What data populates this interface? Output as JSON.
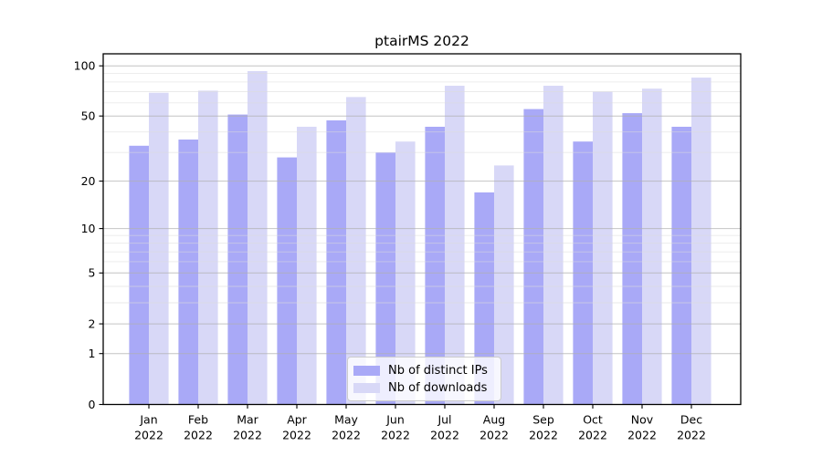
{
  "chart_data": {
    "type": "bar",
    "title": "ptairMS 2022",
    "categories": [
      "Jan",
      "Feb",
      "Mar",
      "Apr",
      "May",
      "Jun",
      "Jul",
      "Aug",
      "Sep",
      "Oct",
      "Nov",
      "Dec"
    ],
    "x_tick_second_line": "2022",
    "series": [
      {
        "name": "Nb of distinct IPs",
        "color": "#a9a9f7",
        "values": [
          33,
          36,
          51,
          28,
          47,
          30,
          43,
          17,
          55,
          35,
          52,
          43
        ]
      },
      {
        "name": "Nb of downloads",
        "color": "#d8d8f7",
        "values": [
          69,
          71,
          93,
          43,
          65,
          35,
          76,
          25,
          76,
          70,
          73,
          85
        ]
      }
    ],
    "yscale": "log1p",
    "ylim": [
      0,
      118
    ],
    "y_major_ticks": [
      0,
      1,
      2,
      5,
      10,
      20,
      50,
      100
    ],
    "y_minor_ticks": [
      3,
      4,
      6,
      7,
      8,
      9,
      30,
      40,
      60,
      70,
      80,
      90
    ],
    "grid": true,
    "grid_over_bars": true,
    "legend_position": "lower center",
    "xlabel": "",
    "ylabel": ""
  },
  "colors": {
    "background": "#ffffff",
    "axis": "#000000",
    "grid_major": "#b0b0b0",
    "grid_minor": "#dcdcdc",
    "legend_border": "#cccccc",
    "bar_distinct_ips": "#a9a9f7",
    "bar_downloads": "#d8d8f7"
  }
}
